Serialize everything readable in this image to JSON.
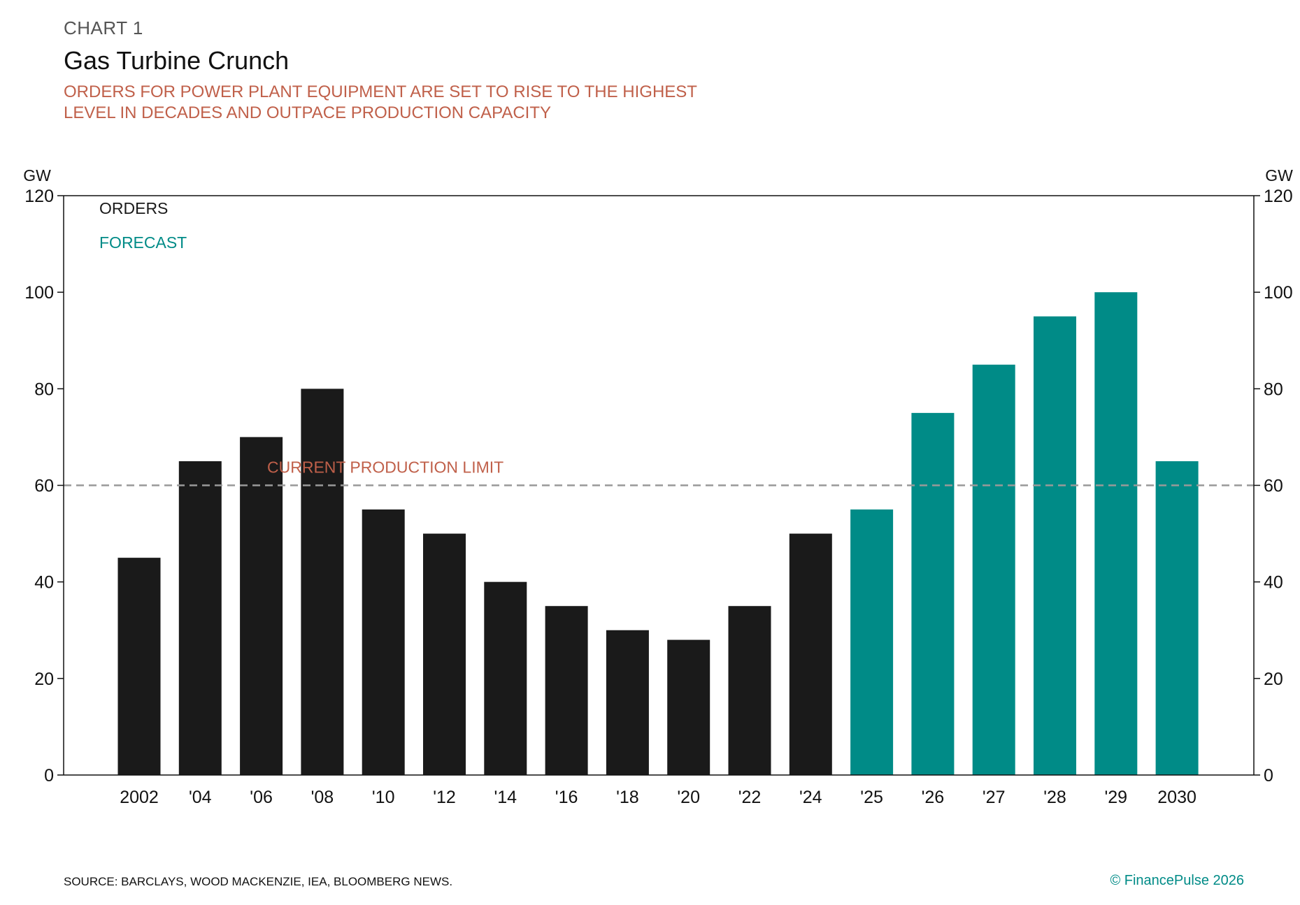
{
  "header": {
    "kicker": "CHART 1",
    "title": "Gas Turbine Crunch",
    "subtitle_line1": "ORDERS FOR POWER PLANT EQUIPMENT ARE SET TO RISE TO THE HIGHEST",
    "subtitle_line2": "LEVEL IN DECADES AND OUTPACE PRODUCTION CAPACITY"
  },
  "footer": {
    "source": "SOURCE: BARCLAYS, WOOD MACKENZIE, IEA, BLOOMBERG NEWS.",
    "credit": "© FinancePulse 2026"
  },
  "colors": {
    "orders": "#1a1a1a",
    "forecast": "#008b87",
    "limit": "#999999",
    "limit_label": "#c0604a",
    "axis": "#111111"
  },
  "chart_data": {
    "type": "bar",
    "title": "Gas Turbine Crunch",
    "unit_left": "GW",
    "unit_right": "GW",
    "ylim": [
      0,
      120
    ],
    "yticks": [
      0,
      20,
      40,
      60,
      80,
      100,
      120
    ],
    "grid": false,
    "legend_position": "top-left",
    "categories": [
      "2002",
      "'04",
      "'06",
      "'08",
      "'10",
      "'12",
      "'14",
      "'16",
      "'18",
      "'20",
      "'22",
      "'24",
      "'25",
      "'26",
      "'27",
      "'28",
      "'29",
      "2030"
    ],
    "series": [
      {
        "name": "ORDERS",
        "values": [
          45,
          65,
          70,
          80,
          55,
          50,
          40,
          35,
          30,
          28,
          35,
          50,
          null,
          null,
          null,
          null,
          null,
          null
        ]
      },
      {
        "name": "FORECAST",
        "values": [
          null,
          null,
          null,
          null,
          null,
          null,
          null,
          null,
          null,
          null,
          null,
          null,
          55,
          75,
          85,
          95,
          100,
          65
        ]
      }
    ],
    "reference_line": {
      "label": "CURRENT PRODUCTION LIMIT",
      "value": 60,
      "style": "dashed"
    }
  }
}
